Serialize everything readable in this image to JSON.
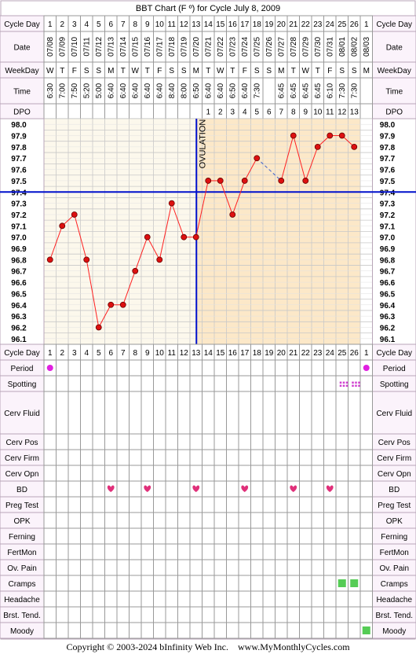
{
  "title": "BBT Chart (F º) for Cycle July 8, 2009",
  "labels": {
    "cycle_day": "Cycle Day",
    "date": "Date",
    "weekday": "WeekDay",
    "time": "Time",
    "dpo": "DPO",
    "ovulation": "OVULATION"
  },
  "cycle_days": [
    "1",
    "2",
    "3",
    "4",
    "5",
    "6",
    "7",
    "8",
    "9",
    "10",
    "11",
    "12",
    "13",
    "14",
    "15",
    "16",
    "17",
    "18",
    "19",
    "20",
    "21",
    "22",
    "23",
    "24",
    "25",
    "26",
    "1"
  ],
  "dates": [
    "07/08",
    "07/09",
    "07/10",
    "07/11",
    "07/12",
    "07/13",
    "07/14",
    "07/15",
    "07/16",
    "07/17",
    "07/18",
    "07/19",
    "07/20",
    "07/21",
    "07/22",
    "07/23",
    "07/24",
    "07/25",
    "07/26",
    "07/27",
    "07/28",
    "07/29",
    "07/30",
    "07/31",
    "08/01",
    "08/02",
    "08/03"
  ],
  "weekdays": [
    "W",
    "T",
    "F",
    "S",
    "S",
    "M",
    "T",
    "W",
    "T",
    "F",
    "S",
    "S",
    "M",
    "T",
    "W",
    "T",
    "F",
    "S",
    "S",
    "M",
    "T",
    "W",
    "T",
    "F",
    "S",
    "S",
    "M"
  ],
  "times": [
    "6:30",
    "7:00",
    "7:50",
    "5:20",
    "5:00",
    "6:40",
    "6:40",
    "6:40",
    "6:40",
    "6:40",
    "8:40",
    "8:00",
    "6:50",
    "6:40",
    "6:40",
    "6:50",
    "6:40",
    "7:30",
    "",
    "6:45",
    "6:45",
    "6:45",
    "6:45",
    "6:10",
    "7:30",
    "7:30",
    ""
  ],
  "dpo": [
    "",
    "",
    "",
    "",
    "",
    "",
    "",
    "",
    "",
    "",
    "",
    "",
    "",
    "1",
    "2",
    "3",
    "4",
    "5",
    "6",
    "7",
    "8",
    "9",
    "10",
    "11",
    "12",
    "13",
    ""
  ],
  "temp_axis_labels": [
    "98.0",
    "97.9",
    "97.8",
    "97.7",
    "97.6",
    "97.5",
    "97.4",
    "97.3",
    "97.2",
    "97.1",
    "97.0",
    "96.9",
    "96.8",
    "96.7",
    "96.6",
    "96.5",
    "96.4",
    "96.3",
    "96.2",
    "96.1"
  ],
  "chart_data": {
    "type": "line",
    "title": "BBT Chart (F º) for Cycle July 8, 2009",
    "ylabel": "",
    "ylim": [
      96.1,
      98.0
    ],
    "x": [
      1,
      2,
      3,
      4,
      5,
      6,
      7,
      8,
      9,
      10,
      11,
      12,
      13,
      14,
      15,
      16,
      17,
      18,
      19,
      20,
      21,
      22,
      23,
      24,
      25,
      26,
      27
    ],
    "series": [
      {
        "values": [
          96.8,
          97.1,
          97.2,
          96.8,
          96.2,
          96.4,
          96.4,
          96.7,
          97.0,
          96.8,
          97.3,
          97.0,
          97.0,
          97.5,
          97.5,
          97.2,
          97.5,
          97.7,
          null,
          97.5,
          97.9,
          97.5,
          97.8,
          97.9,
          97.9,
          97.8,
          null
        ]
      }
    ],
    "coverline": 97.4,
    "ovulation_day": 13,
    "grid": true
  },
  "rows": [
    {
      "label": "Cycle Day",
      "type": "cycleday"
    },
    {
      "label": "Period",
      "marks": [
        {
          "day": 1,
          "kind": "period"
        },
        {
          "day": 27,
          "kind": "period"
        }
      ]
    },
    {
      "label": "Spotting",
      "marks": [
        {
          "day": 25,
          "kind": "spotting"
        },
        {
          "day": 26,
          "kind": "spotting"
        }
      ]
    },
    {
      "label": "Cerv Fluid",
      "marks": []
    },
    {
      "label": "Cerv Pos",
      "marks": []
    },
    {
      "label": "Cerv Firm",
      "marks": []
    },
    {
      "label": "Cerv Opn",
      "marks": []
    },
    {
      "label": "BD",
      "marks": [
        {
          "day": 6,
          "kind": "heart"
        },
        {
          "day": 9,
          "kind": "heart"
        },
        {
          "day": 13,
          "kind": "heart"
        },
        {
          "day": 17,
          "kind": "heart"
        },
        {
          "day": 21,
          "kind": "heart"
        },
        {
          "day": 24,
          "kind": "heart"
        }
      ]
    },
    {
      "label": "Preg Test",
      "marks": []
    },
    {
      "label": "OPK",
      "marks": []
    },
    {
      "label": "Ferning",
      "marks": []
    },
    {
      "label": "FertMon",
      "marks": []
    },
    {
      "label": "Ov. Pain",
      "marks": []
    },
    {
      "label": "Cramps",
      "marks": [
        {
          "day": 25,
          "kind": "green"
        },
        {
          "day": 26,
          "kind": "green"
        }
      ]
    },
    {
      "label": "Headache",
      "marks": []
    },
    {
      "label": "Brst. Tend.",
      "marks": []
    },
    {
      "label": "Moody",
      "marks": [
        {
          "day": 27,
          "kind": "green"
        }
      ]
    }
  ],
  "footer": "Copyright © 2003-2024 bInfinity Web Inc.    www.MyMonthlyCycles.com",
  "colors": {
    "frame": "#b8a6b8",
    "label_bg": "#fbf3fb",
    "follicular_bg": "#fcf8ec",
    "luteal_bg": "#fce8c8",
    "grid": "#c8c8c8",
    "line": "#ff2020",
    "point": "#dd1010",
    "coverline": "#0010cc",
    "ovulation": "#0010cc",
    "period": "#e020e0",
    "heart": "#e0307a",
    "green": "#55cc55",
    "spotting": "#d040d0"
  }
}
